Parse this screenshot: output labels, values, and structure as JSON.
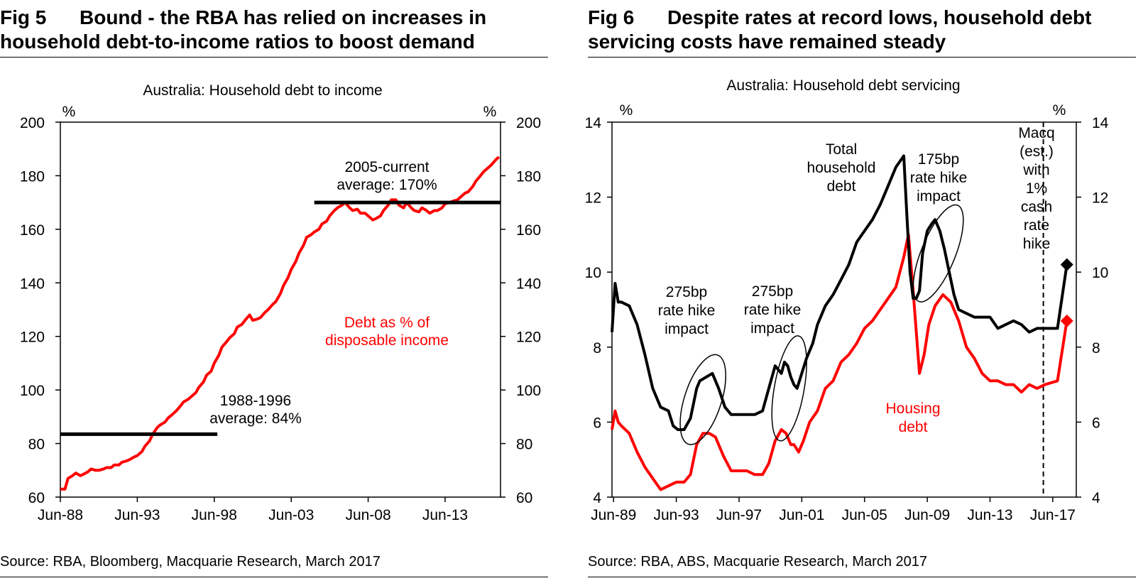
{
  "figures": {
    "fig5": {
      "number": "Fig 5",
      "title_line1": "Bound - the RBA has relied on increases in",
      "title_line2": "household debt-to-income ratios to boost demand",
      "source": "Source: RBA, Bloomberg, Macquarie Research, March 2017"
    },
    "fig6": {
      "number": "Fig 6",
      "title_line1": "Despite rates at record lows, household debt",
      "title_line2": "servicing costs have remained steady",
      "source": "Source: RBA, ABS, Macquarie Research, March 2017"
    }
  },
  "chart_data": [
    {
      "type": "line",
      "title": "Australia: Household debt to income",
      "ylabel_left": "%",
      "ylabel_right": "%",
      "xlim": [
        1988.5,
        2017.1
      ],
      "ylim": [
        60,
        200
      ],
      "yticks": [
        60,
        80,
        100,
        120,
        140,
        160,
        180,
        200
      ],
      "xticks": [
        {
          "x": 1988.5,
          "label": "Jun-88"
        },
        {
          "x": 1993.5,
          "label": "Jun-93"
        },
        {
          "x": 1998.5,
          "label": "Jun-98"
        },
        {
          "x": 2003.5,
          "label": "Jun-03"
        },
        {
          "x": 2008.5,
          "label": "Jun-08"
        },
        {
          "x": 2013.5,
          "label": "Jun-13"
        }
      ],
      "grid": false,
      "series": [
        {
          "name": "Debt as % of disposable income",
          "color": "#ff0000",
          "x": [
            1988.5,
            1988.8,
            1989.0,
            1989.3,
            1989.5,
            1989.8,
            1990.0,
            1990.3,
            1990.5,
            1990.8,
            1991.0,
            1991.3,
            1991.5,
            1991.8,
            1992.0,
            1992.3,
            1992.5,
            1992.8,
            1993.0,
            1993.3,
            1993.5,
            1993.8,
            1994.0,
            1994.3,
            1994.5,
            1994.8,
            1995.0,
            1995.3,
            1995.5,
            1995.8,
            1996.0,
            1996.3,
            1996.5,
            1996.8,
            1997.0,
            1997.3,
            1997.5,
            1997.8,
            1998.0,
            1998.3,
            1998.5,
            1998.8,
            1999.0,
            1999.3,
            1999.5,
            1999.8,
            2000.0,
            2000.3,
            2000.5,
            2000.8,
            2001.0,
            2001.3,
            2001.5,
            2001.8,
            2002.0,
            2002.3,
            2002.5,
            2002.8,
            2003.0,
            2003.3,
            2003.5,
            2003.8,
            2004.0,
            2004.3,
            2004.5,
            2004.8,
            2005.0,
            2005.3,
            2005.5,
            2005.8,
            2006.0,
            2006.3,
            2006.5,
            2006.8,
            2007.0,
            2007.3,
            2007.5,
            2007.8,
            2008.0,
            2008.3,
            2008.5,
            2008.8,
            2009.0,
            2009.3,
            2009.5,
            2009.8,
            2010.0,
            2010.3,
            2010.5,
            2010.8,
            2011.0,
            2011.3,
            2011.5,
            2011.8,
            2012.0,
            2012.3,
            2012.5,
            2012.8,
            2013.0,
            2013.3,
            2013.5,
            2013.8,
            2014.0,
            2014.3,
            2014.5,
            2014.8,
            2015.0,
            2015.3,
            2015.5,
            2015.8,
            2016.0,
            2016.3,
            2016.5,
            2016.8,
            2017.0
          ],
          "values": [
            63,
            63,
            67,
            68,
            69,
            68,
            68.5,
            69.5,
            70.5,
            70,
            70,
            70.5,
            71,
            71,
            72,
            72,
            73,
            73.5,
            74,
            75,
            75.5,
            77,
            79,
            81,
            83.5,
            86,
            87,
            88,
            89.5,
            91,
            92,
            94,
            95.5,
            96.5,
            97.5,
            99,
            101,
            103,
            105.5,
            107,
            110,
            113,
            116,
            118,
            119.5,
            121,
            123.5,
            124.5,
            126,
            128,
            126,
            126.5,
            127,
            129,
            130,
            132,
            133,
            136,
            139,
            142,
            145,
            148,
            151,
            154,
            157,
            158,
            159,
            160,
            162,
            163,
            165,
            167,
            168,
            169,
            170,
            168,
            167,
            167.5,
            166,
            166,
            165,
            163.5,
            164,
            165,
            167,
            169,
            171,
            171,
            169,
            168,
            170,
            168,
            167,
            166.5,
            168,
            167,
            166,
            167,
            167,
            168,
            169.5,
            170,
            170.5,
            171,
            172,
            173.5,
            174,
            176,
            178,
            180,
            181.5,
            183,
            184,
            186,
            187
          ]
        }
      ],
      "reference_lines": [
        {
          "label_line1": "1988-1996",
          "label_line2": "average: 84%",
          "x_start": 1988.5,
          "x_end": 1998.7,
          "y": 83.5
        },
        {
          "label_line1": "2005-current",
          "label_line2": "average: 170%",
          "x_start": 2005.0,
          "x_end": 2017.1,
          "y": 170
        }
      ],
      "annotations": [
        {
          "text_line1": "Debt as % of",
          "text_line2": "disposable income",
          "color": "#ff0000"
        }
      ]
    },
    {
      "type": "line",
      "title": "Australia: Household debt servicing",
      "ylabel_left": "%",
      "ylabel_right": "%",
      "xlim": [
        1989.4,
        2019.0
      ],
      "ylim": [
        4,
        14
      ],
      "yticks": [
        4,
        6,
        8,
        10,
        12,
        14
      ],
      "xticks": [
        {
          "x": 1989.5,
          "label": "Jun-89"
        },
        {
          "x": 1993.5,
          "label": "Jun-93"
        },
        {
          "x": 1997.5,
          "label": "Jun-97"
        },
        {
          "x": 2001.5,
          "label": "Jun-01"
        },
        {
          "x": 2005.5,
          "label": "Jun-05"
        },
        {
          "x": 2009.5,
          "label": "Jun-09"
        },
        {
          "x": 2013.5,
          "label": "Jun-13"
        },
        {
          "x": 2017.5,
          "label": "Jun-17"
        }
      ],
      "grid": false,
      "forecast_divider_x": 2016.9,
      "series": [
        {
          "name": "Total household debt",
          "color": "#000000",
          "x": [
            1989.4,
            1989.6,
            1989.8,
            1990.0,
            1990.5,
            1991.0,
            1991.5,
            1992.0,
            1992.5,
            1993.0,
            1993.3,
            1993.6,
            1994.0,
            1994.4,
            1994.8,
            1995.0,
            1995.4,
            1995.8,
            1996.2,
            1996.6,
            1997.0,
            1997.5,
            1998.0,
            1998.5,
            1999.0,
            1999.4,
            1999.8,
            2000.2,
            2000.4,
            2000.6,
            2000.8,
            2001.0,
            2001.2,
            2001.5,
            2001.8,
            2002.2,
            2002.5,
            2003.0,
            2003.5,
            2004.0,
            2004.5,
            2005.0,
            2005.5,
            2006.0,
            2006.5,
            2007.0,
            2007.5,
            2008.0,
            2008.2,
            2008.4,
            2008.6,
            2008.8,
            2009.0,
            2009.2,
            2009.5,
            2009.8,
            2010.0,
            2010.3,
            2010.6,
            2010.9,
            2011.2,
            2011.5,
            2012.0,
            2012.5,
            2013.0,
            2013.5,
            2014.0,
            2014.5,
            2015.0,
            2015.5,
            2016.0,
            2016.5,
            2017.0,
            2017.8,
            2018.4
          ],
          "values": [
            8.4,
            9.7,
            9.2,
            9.2,
            9.1,
            8.6,
            7.8,
            6.9,
            6.4,
            6.3,
            5.9,
            5.8,
            5.8,
            6.1,
            6.9,
            7.1,
            7.2,
            7.3,
            6.9,
            6.4,
            6.2,
            6.2,
            6.2,
            6.2,
            6.3,
            6.9,
            7.5,
            7.3,
            7.6,
            7.5,
            7.2,
            7.0,
            6.9,
            7.3,
            7.7,
            8.1,
            8.6,
            9.1,
            9.4,
            9.8,
            10.2,
            10.8,
            11.1,
            11.4,
            11.8,
            12.3,
            12.8,
            13.1,
            11.5,
            10.0,
            9.3,
            9.3,
            9.5,
            10.5,
            11.1,
            11.3,
            11.4,
            11.1,
            10.6,
            10.0,
            9.4,
            9.0,
            8.9,
            8.8,
            8.8,
            8.8,
            8.5,
            8.6,
            8.7,
            8.6,
            8.4,
            8.5,
            8.5,
            8.5,
            10.2
          ]
        },
        {
          "name": "Housing debt",
          "color": "#ff0000",
          "x": [
            1989.4,
            1989.6,
            1989.8,
            1990.0,
            1990.5,
            1991.0,
            1991.5,
            1992.0,
            1992.5,
            1993.0,
            1993.5,
            1994.0,
            1994.4,
            1994.8,
            1995.2,
            1995.6,
            1996.0,
            1996.5,
            1997.0,
            1997.5,
            1998.0,
            1998.5,
            1999.0,
            1999.4,
            1999.8,
            2000.2,
            2000.5,
            2000.8,
            2001.0,
            2001.3,
            2001.6,
            2002.0,
            2002.5,
            2003.0,
            2003.5,
            2004.0,
            2004.5,
            2005.0,
            2005.5,
            2006.0,
            2006.5,
            2007.0,
            2007.5,
            2008.0,
            2008.3,
            2008.6,
            2009.0,
            2009.3,
            2009.6,
            2010.0,
            2010.5,
            2011.0,
            2011.5,
            2012.0,
            2012.5,
            2013.0,
            2013.5,
            2014.0,
            2014.5,
            2015.0,
            2015.5,
            2016.0,
            2016.5,
            2017.0,
            2017.8,
            2018.4
          ],
          "values": [
            5.8,
            6.3,
            6.0,
            5.9,
            5.7,
            5.2,
            4.8,
            4.5,
            4.2,
            4.3,
            4.4,
            4.4,
            4.6,
            5.4,
            5.7,
            5.7,
            5.6,
            5.1,
            4.7,
            4.7,
            4.7,
            4.6,
            4.6,
            4.9,
            5.5,
            5.8,
            5.7,
            5.4,
            5.4,
            5.2,
            5.5,
            6.0,
            6.3,
            6.9,
            7.1,
            7.6,
            7.8,
            8.1,
            8.5,
            8.7,
            9.0,
            9.3,
            9.6,
            10.4,
            11.0,
            9.5,
            7.3,
            7.8,
            8.6,
            9.1,
            9.4,
            9.2,
            8.7,
            8.0,
            7.7,
            7.3,
            7.1,
            7.1,
            7.0,
            7.0,
            6.8,
            7.0,
            6.9,
            7.0,
            7.1,
            8.7
          ]
        }
      ],
      "forecast_markers": [
        {
          "series": "Total household debt",
          "x": 2018.4,
          "y": 10.2
        },
        {
          "series": "Housing debt",
          "x": 2018.4,
          "y": 8.7
        }
      ],
      "highlight_ellipses": [
        {
          "cx": 1995.2,
          "cy": 6.6
        },
        {
          "cx": 2000.7,
          "cy": 6.9
        },
        {
          "cx": 2010.2,
          "cy": 10.5
        }
      ],
      "annotations": {
        "hike1": [
          "275bp",
          "rate hike",
          "impact"
        ],
        "hike2": [
          "275bp",
          "rate hike",
          "impact"
        ],
        "hike3": [
          "175bp",
          "rate hike",
          "impact"
        ],
        "total": [
          "Total",
          "household",
          "debt"
        ],
        "housing": [
          "Housing",
          "debt"
        ],
        "forecast": [
          "Macq",
          "(est.)",
          "with",
          "1%",
          "cash",
          "rate",
          "hike"
        ]
      }
    }
  ]
}
